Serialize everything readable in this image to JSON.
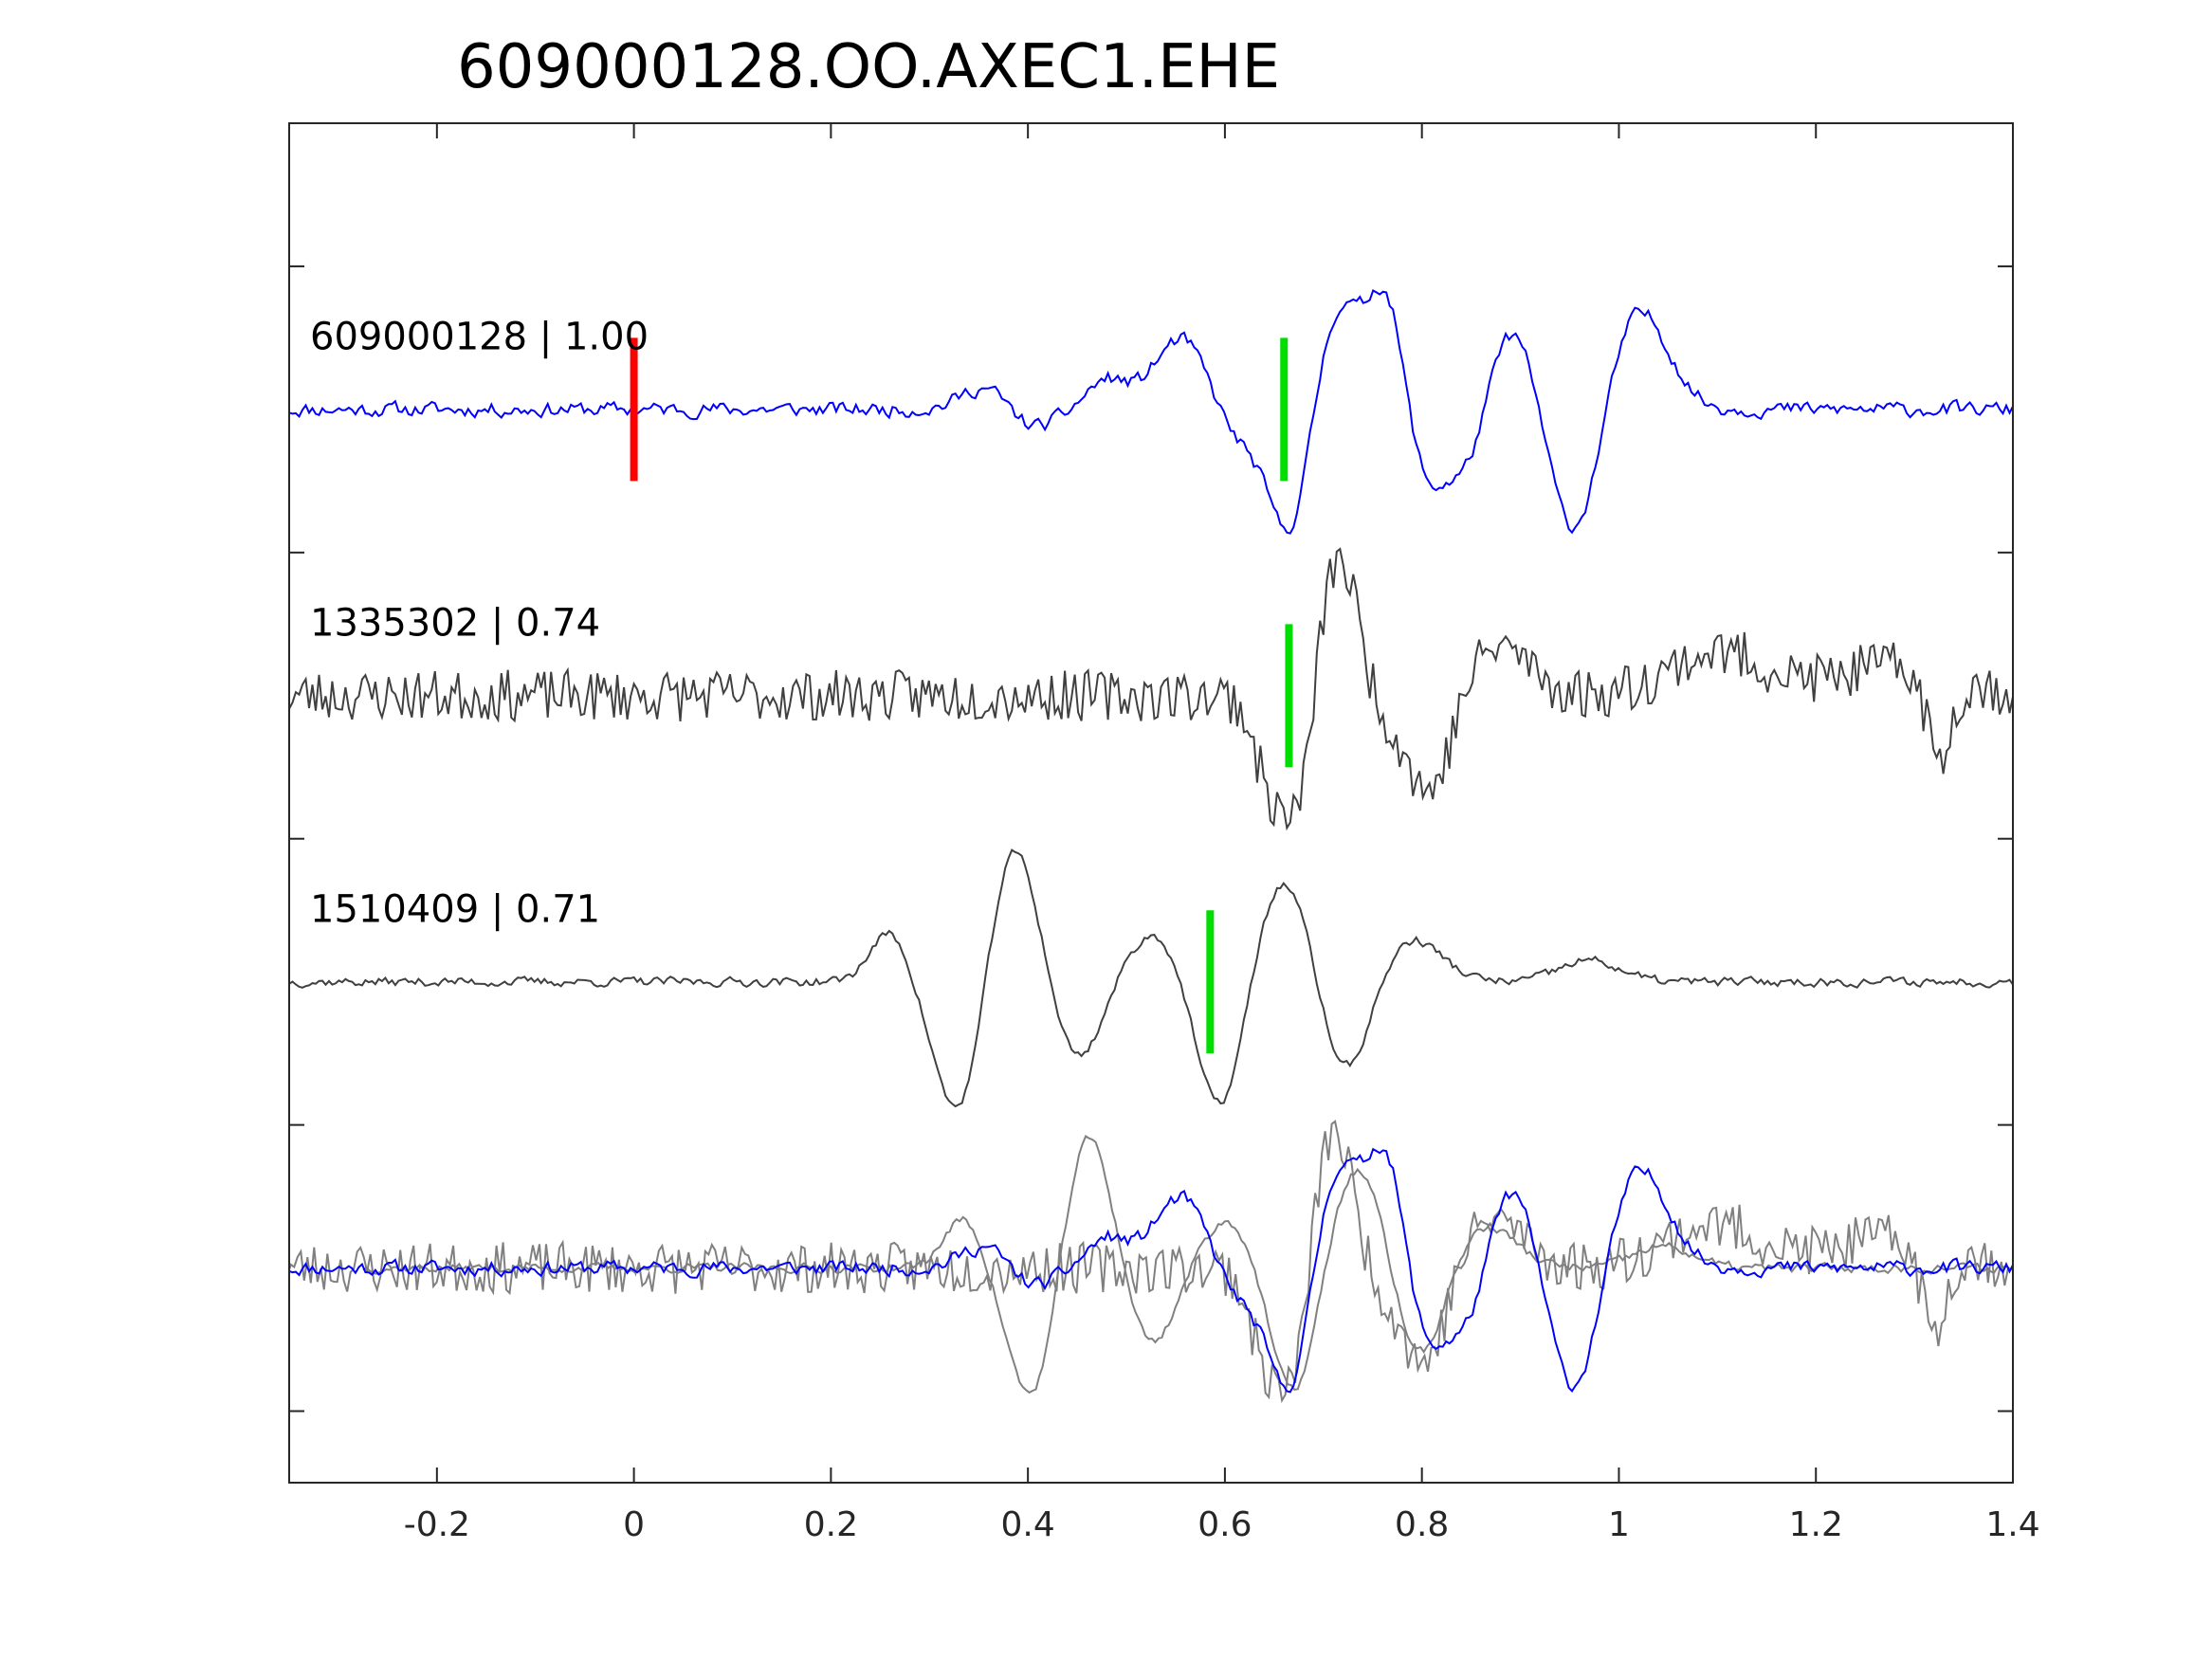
{
  "chart_data": {
    "type": "line",
    "title": "609000128.OO.AXEC1.EHE",
    "xlim": [
      -0.35,
      1.4
    ],
    "xticks": [
      -0.2,
      0,
      0.2,
      0.4,
      0.6,
      0.8,
      1,
      1.2,
      1.4
    ],
    "xtick_labels": [
      "-0.2",
      "0",
      "0.2",
      "0.4",
      "0.6",
      "0.8",
      "1",
      "1.2",
      "1.4"
    ],
    "ylim": [
      0,
      9.5
    ],
    "yticks": [
      0.5,
      2.5,
      4.5,
      6.5,
      8.5
    ],
    "grid": false,
    "colors": {
      "reference": "#0000ff",
      "match": "#404040",
      "overlay": "#808080",
      "origin_marker": "#ff0000",
      "pick_marker": "#00dd00"
    },
    "traces": [
      {
        "label": "609000128 | 1.00",
        "role": "reference",
        "baseline": 7.5,
        "seed": 11,
        "noise": 0.08,
        "pick": 0.66,
        "events": [
          [
            0.36,
            0.18,
            0.025
          ],
          [
            0.4,
            -0.15,
            0.025
          ],
          [
            0.48,
            0.2,
            0.02
          ],
          [
            0.56,
            0.55,
            0.03
          ],
          [
            0.61,
            -0.3,
            0.03
          ],
          [
            0.665,
            -0.8,
            0.02
          ],
          [
            0.715,
            0.7,
            0.02
          ],
          [
            0.765,
            1.0,
            0.02
          ],
          [
            0.8,
            -0.6,
            0.025
          ],
          [
            0.85,
            -0.4,
            0.02
          ],
          [
            0.89,
            0.6,
            0.025
          ],
          [
            0.955,
            -0.9,
            0.025
          ],
          [
            1.02,
            0.7,
            0.03
          ]
        ]
      },
      {
        "label": "1335302 | 0.74",
        "role": "match",
        "baseline": 5.5,
        "seed": 23,
        "noise": 0.18,
        "pick": 0.665,
        "events": [
          [
            0.645,
            -0.6,
            0.015
          ],
          [
            0.675,
            -0.8,
            0.015
          ],
          [
            0.715,
            1.0,
            0.02
          ],
          [
            0.78,
            -0.2,
            0.03
          ],
          [
            0.81,
            -0.55,
            0.02
          ],
          [
            0.88,
            0.35,
            0.03
          ],
          [
            1.1,
            0.3,
            0.05
          ],
          [
            1.28,
            0.2,
            0.06
          ],
          [
            1.325,
            -0.6,
            0.012
          ]
        ]
      },
      {
        "label": "1510409 | 0.71",
        "role": "match",
        "baseline": 3.5,
        "seed": 37,
        "noise": 0.05,
        "pick": 0.585,
        "events": [
          [
            0.26,
            0.35,
            0.02
          ],
          [
            0.33,
            -0.95,
            0.025
          ],
          [
            0.385,
            1.0,
            0.025
          ],
          [
            0.45,
            -0.55,
            0.025
          ],
          [
            0.53,
            0.35,
            0.03
          ],
          [
            0.595,
            -0.95,
            0.025
          ],
          [
            0.66,
            0.75,
            0.03
          ],
          [
            0.72,
            -0.7,
            0.025
          ],
          [
            0.79,
            0.3,
            0.03
          ],
          [
            0.97,
            0.15,
            0.03
          ]
        ]
      }
    ],
    "overlay_baseline": 1.5,
    "origin_marker_x": 0
  }
}
